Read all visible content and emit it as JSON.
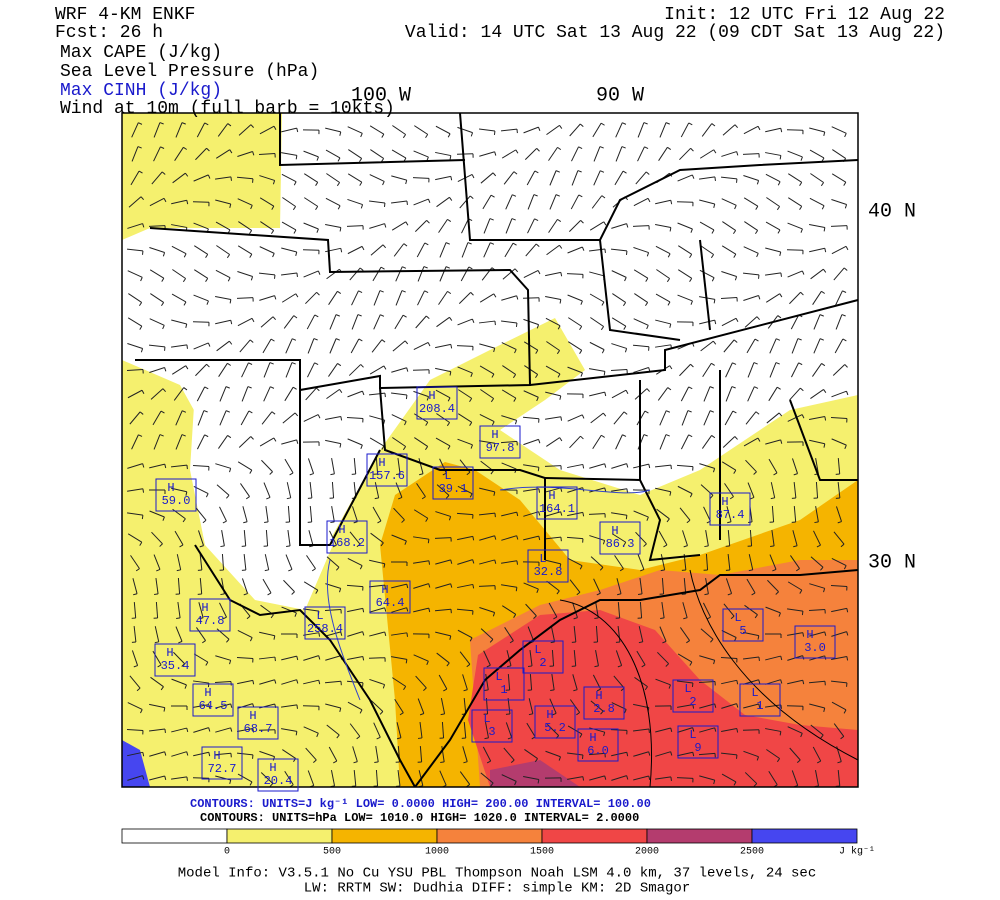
{
  "header": {
    "model": "WRF 4-KM ENKF",
    "forecast": "Fcst:   26 h",
    "init": "Init: 12 UTC Fri 12 Aug 22",
    "valid": "Valid: 14 UTC Sat 13 Aug 22 (09 CDT Sat 13 Aug 22)",
    "fields": [
      "Max CAPE (J/kg)",
      "Sea Level Pressure (hPa)",
      "Max CINH (J/kg)",
      "Wind at 10m (full barb = 10kts)"
    ]
  },
  "map": {
    "longitude_labels": [
      "100 W",
      "90 W"
    ],
    "latitude_labels": [
      "40 N",
      "30 N"
    ],
    "centers": [
      {
        "type": "H",
        "value": "208.4"
      },
      {
        "type": "H",
        "value": "97.8"
      },
      {
        "type": "H",
        "value": "157.6"
      },
      {
        "type": "L",
        "value": "39.1"
      },
      {
        "type": "H",
        "value": "59.0"
      },
      {
        "type": "H",
        "value": "164.1"
      },
      {
        "type": "H",
        "value": "87.4"
      },
      {
        "type": "H",
        "value": "168.2"
      },
      {
        "type": "H",
        "value": "86.3"
      },
      {
        "type": "L",
        "value": "32.8"
      },
      {
        "type": "H",
        "value": "64.4"
      },
      {
        "type": "H",
        "value": "47.8"
      },
      {
        "type": "L",
        "value": "258.4"
      },
      {
        "type": "L",
        "value": "5"
      },
      {
        "type": "H",
        "value": "3.0"
      },
      {
        "type": "H",
        "value": "35.4"
      },
      {
        "type": "L",
        "value": "2"
      },
      {
        "type": "L",
        "value": "1"
      },
      {
        "type": "H",
        "value": "64.5"
      },
      {
        "type": "H",
        "value": "2.8"
      },
      {
        "type": "L",
        "value": "2"
      },
      {
        "type": "L",
        "value": "1"
      },
      {
        "type": "H",
        "value": "68.7"
      },
      {
        "type": "L",
        "value": "3"
      },
      {
        "type": "H",
        "value": "5.2"
      },
      {
        "type": "L",
        "value": "9"
      },
      {
        "type": "H",
        "value": "6.0"
      },
      {
        "type": "H",
        "value": "72.7"
      },
      {
        "type": "H",
        "value": "20.4"
      }
    ]
  },
  "contours": {
    "cinh": "CONTOURS:  UNITS=J kg⁻¹  LOW=   0.0000      HIGH=  200.00      INTERVAL=    100.00",
    "pressure": "CONTOURS:  UNITS=hPa  LOW=   1010.0      HIGH=  1020.0      INTERVAL=    2.0000"
  },
  "colorbar": {
    "bounds": [
      0,
      500,
      1000,
      1500,
      2000,
      2500
    ],
    "colors": [
      "#ffffff",
      "#f5f06e",
      "#f5b400",
      "#f5823c",
      "#f04646",
      "#b43c6e",
      "#4646f0"
    ],
    "units": "J kg⁻¹"
  },
  "footer": {
    "line1": "Model Info: V3.5.1    No Cu    YSU PBL   Thompson      Noah LSM  4.0 km,  37 levels,   24 sec",
    "line2": "LW: RRTM  SW: Dudhia  DIFF: simple  KM: 2D Smagor"
  }
}
